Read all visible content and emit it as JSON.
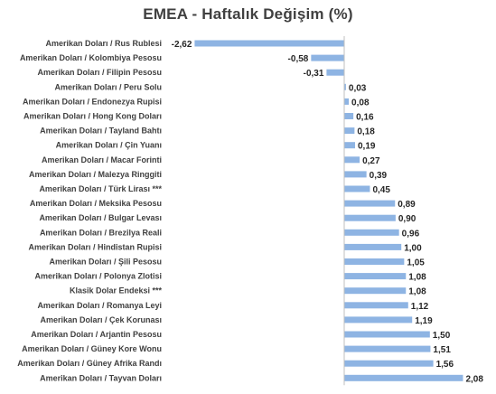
{
  "chart_data": {
    "type": "bar",
    "orientation": "horizontal",
    "title": "EMEA - Haftalık Değişim (%)",
    "xlabel": "",
    "ylabel": "",
    "grid": false,
    "legend": "none",
    "bar_color": "#8EB4E3",
    "categories": [
      "Amerikan Doları / Rus Rublesi",
      "Amerikan Doları / Kolombiya Pesosu",
      "Amerikan Doları / Filipin Pesosu",
      "Amerikan Doları / Peru Solu",
      "Amerikan Doları / Endonezya Rupisi",
      "Amerikan Doları / Hong Kong Doları",
      "Amerikan Doları / Tayland Bahtı",
      "Amerikan Doları / Çin Yuanı",
      "Amerikan Doları / Macar Forinti",
      "Amerikan Doları / Malezya Ringgiti",
      "Amerikan Doları / Türk Lirası ***",
      "Amerikan Doları / Meksika Pesosu",
      "Amerikan Doları / Bulgar Levası",
      "Amerikan Doları / Brezilya Reali",
      "Amerikan Doları / Hindistan Rupisi",
      "Amerikan Doları / Şili Pesosu",
      "Amerikan Doları / Polonya Zlotisi",
      "Klasik Dolar Endeksi ***",
      "Amerikan Doları / Romanya Leyi",
      "Amerikan Doları / Çek Korunası",
      "Amerikan Doları / Arjantin Pesosu",
      "Amerikan Doları / Güney Kore Wonu",
      "Amerikan Doları / Güney Afrika Randı",
      "Amerikan Doları / Tayvan Doları"
    ],
    "values": [
      -2.62,
      -0.58,
      -0.31,
      0.03,
      0.08,
      0.16,
      0.18,
      0.19,
      0.27,
      0.39,
      0.45,
      0.89,
      0.9,
      0.96,
      1.0,
      1.05,
      1.08,
      1.08,
      1.12,
      1.19,
      1.5,
      1.51,
      1.56,
      2.08
    ],
    "value_labels": [
      "-2,62",
      "-0,58",
      "-0,31",
      "0,03",
      "0,08",
      "0,16",
      "0,18",
      "0,19",
      "0,27",
      "0,39",
      "0,45",
      "0,89",
      "0,90",
      "0,96",
      "1,00",
      "1,05",
      "1,08",
      "1,08",
      "1,12",
      "1,19",
      "1,50",
      "1,51",
      "1,56",
      "2,08"
    ]
  }
}
